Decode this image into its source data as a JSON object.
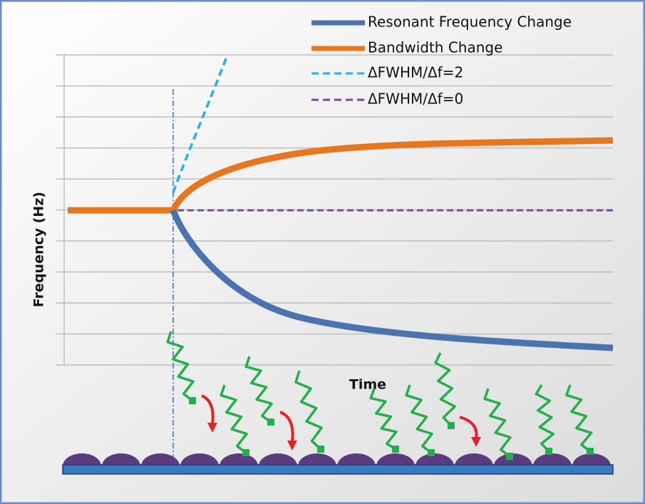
{
  "legend": [
    {
      "label": "Resonant Frequency Change"
    },
    {
      "label": "Bandwidth Change"
    },
    {
      "label": "ΔFWHM/Δf=2"
    },
    {
      "label": "ΔFWHM/Δf=0"
    }
  ],
  "axes": {
    "y_label": "Frequency (Hz)",
    "x_label": "Time"
  }
}
